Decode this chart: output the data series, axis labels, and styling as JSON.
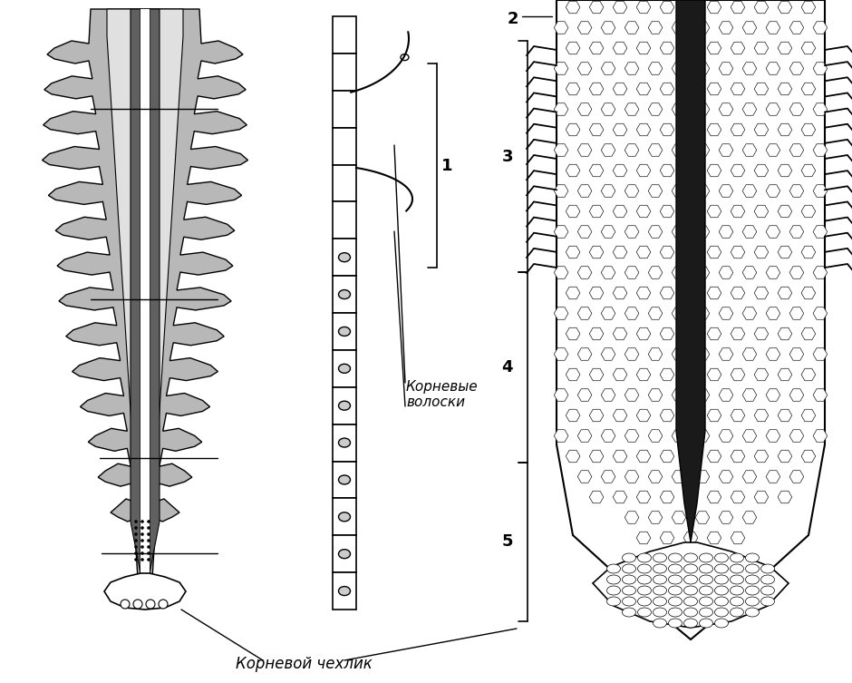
{
  "background_color": "#ffffff",
  "label_kornevoye_volosky": "Корневые\nволоски",
  "label_kornevoy_chehlik": "Корневой чехлик",
  "fig_width": 9.4,
  "fig_height": 7.53,
  "line_color": "#000000",
  "gray_fill": "#b8b8b8",
  "light_gray": "#d0d0d0",
  "dark_gray": "#606060"
}
